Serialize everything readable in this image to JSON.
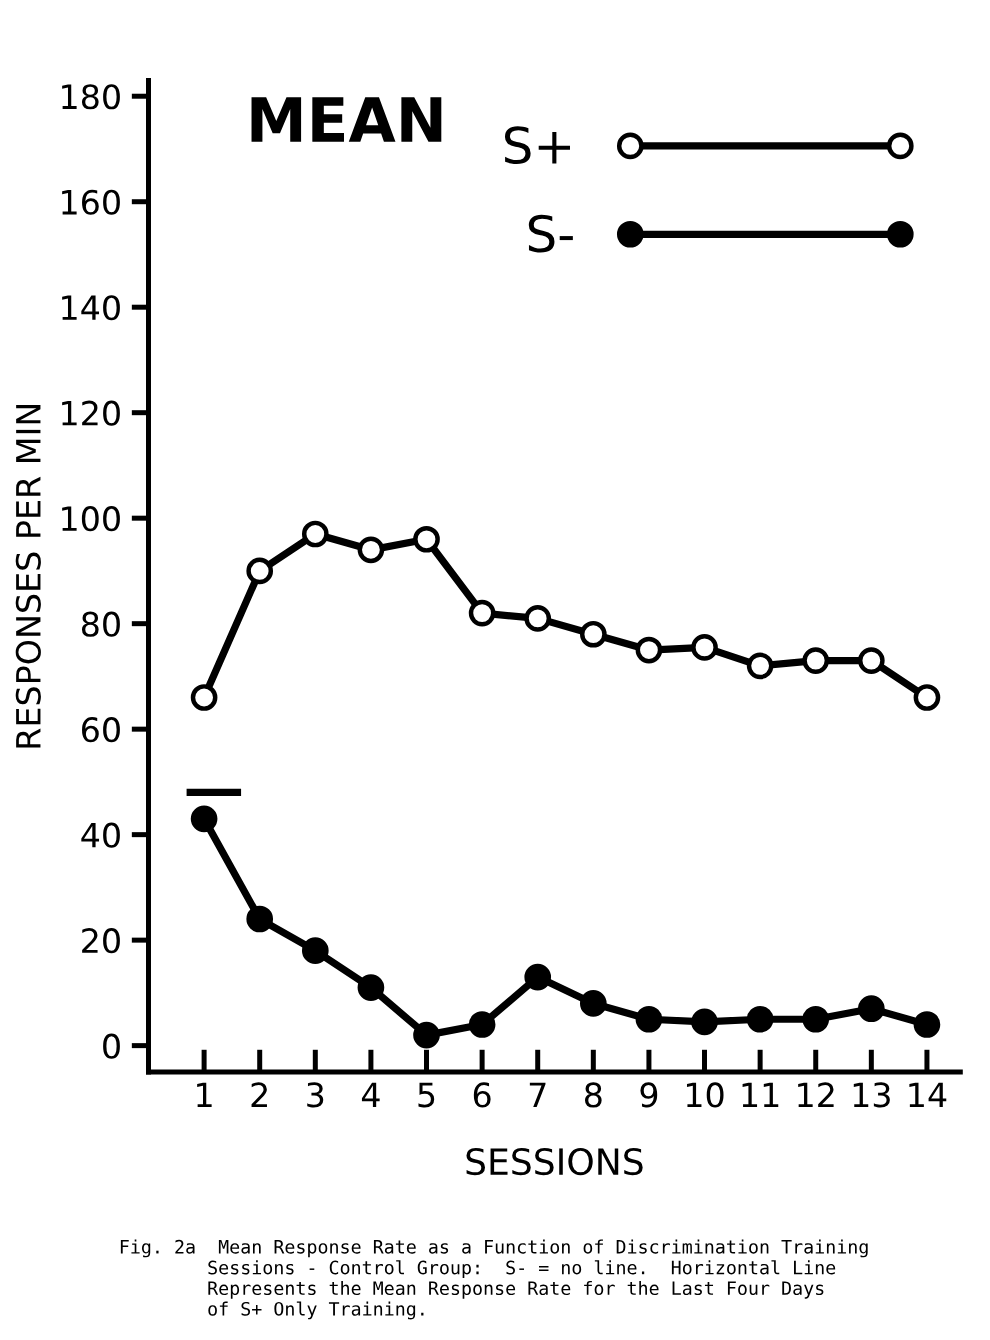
{
  "chart_data": {
    "type": "line",
    "title": "MEAN",
    "xlabel": "SESSIONS",
    "ylabel": "RESPONSES PER MIN",
    "x": [
      1,
      2,
      3,
      4,
      5,
      6,
      7,
      8,
      9,
      10,
      11,
      12,
      13,
      14
    ],
    "series": [
      {
        "name": "S+",
        "color": "#000000",
        "colors": [
          "#ffffff",
          "#ffffff",
          "#ffffff",
          "#ffffff",
          "#ffffff",
          "#ffffff",
          "#ffffff",
          "#ffffff",
          "#ffffff",
          "#ffffff",
          "#ffffff",
          "#ffffff",
          "#ffffff",
          "#ffffff"
        ],
        "values": [
          66,
          90,
          97,
          94,
          96,
          82,
          81,
          78,
          75,
          75.5,
          72,
          73,
          73,
          66
        ]
      },
      {
        "name": "S-",
        "color": "#000000",
        "values": [
          43,
          24,
          18,
          11,
          2,
          4,
          13,
          8,
          5,
          4.5,
          5,
          5,
          7,
          4
        ]
      },
      {
        "type": "line",
        "color": "#000000",
        "marker": "none",
        "x": [
          0.75,
          1.6
        ],
        "values": [
          48,
          48
        ]
      }
    ],
    "xlim": [
      0,
      14.6
    ],
    "xticks": [
      1,
      2,
      3,
      4,
      5,
      6,
      7,
      8,
      9,
      10,
      11,
      12,
      13,
      14
    ],
    "ylim": [
      -5,
      183
    ],
    "yticks": [
      0,
      20,
      40,
      60,
      80,
      100,
      120,
      140,
      160,
      180
    ],
    "marker": "circle",
    "line_style": "solid",
    "grid": false,
    "legend": "top right",
    "annotations": [
      "Fig. 2a  Mean Response Rate as a Function of Discrimination Training\n        Sessions - Control Group:  S- = no line.  Horizontal Line\n        Represents the Mean Response Rate for the Last Four Days\n        of S+ Only Training."
    ]
  }
}
